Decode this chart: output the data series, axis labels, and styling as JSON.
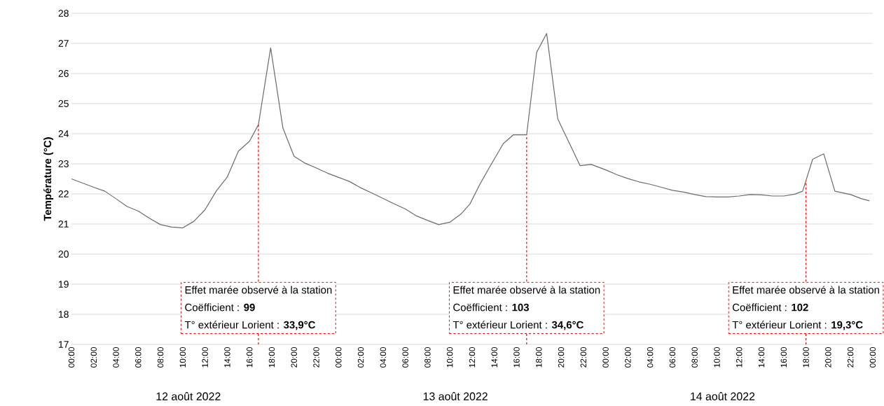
{
  "chart_data": {
    "type": "line",
    "ylabel": "Température (°C)",
    "x": [
      "2022-08-12T00:00",
      "2022-08-12T01:00",
      "2022-08-12T02:00",
      "2022-08-12T03:00",
      "2022-08-12T04:00",
      "2022-08-12T05:00",
      "2022-08-12T06:00",
      "2022-08-12T07:00",
      "2022-08-12T08:00",
      "2022-08-12T09:00",
      "2022-08-12T10:00",
      "2022-08-12T11:00",
      "2022-08-12T12:00",
      "2022-08-12T13:00",
      "2022-08-12T14:00",
      "2022-08-12T15:00",
      "2022-08-12T16:00",
      "2022-08-12T16:48",
      "2022-08-12T17:54",
      "2022-08-12T19:00",
      "2022-08-12T20:00",
      "2022-08-12T21:00",
      "2022-08-12T22:00",
      "2022-08-12T23:00",
      "2022-08-13T00:00",
      "2022-08-13T01:00",
      "2022-08-13T02:00",
      "2022-08-13T03:00",
      "2022-08-13T04:00",
      "2022-08-13T05:00",
      "2022-08-13T06:00",
      "2022-08-13T07:00",
      "2022-08-13T08:00",
      "2022-08-13T09:00",
      "2022-08-13T10:00",
      "2022-08-13T11:00",
      "2022-08-13T11:48",
      "2022-08-13T12:42",
      "2022-08-13T13:42",
      "2022-08-13T14:48",
      "2022-08-13T15:42",
      "2022-08-13T16:54",
      "2022-08-13T17:48",
      "2022-08-13T18:42",
      "2022-08-13T19:42",
      "2022-08-13T21:42",
      "2022-08-13T22:42",
      "2022-08-14T00:00",
      "2022-08-14T01:00",
      "2022-08-14T02:00",
      "2022-08-14T03:00",
      "2022-08-14T04:00",
      "2022-08-14T05:00",
      "2022-08-14T06:00",
      "2022-08-14T07:00",
      "2022-08-14T08:00",
      "2022-08-14T09:00",
      "2022-08-14T10:00",
      "2022-08-14T11:00",
      "2022-08-14T12:00",
      "2022-08-14T13:00",
      "2022-08-14T14:00",
      "2022-08-14T15:00",
      "2022-08-14T16:00",
      "2022-08-14T17:00",
      "2022-08-14T17:42",
      "2022-08-14T18:00",
      "2022-08-14T18:36",
      "2022-08-14T19:36",
      "2022-08-14T20:36",
      "2022-08-14T22:00",
      "2022-08-14T23:00",
      "2022-08-14T23:42"
    ],
    "series": [
      {
        "color": "#6b6b6b",
        "values": [
          22.5,
          22.36,
          22.22,
          22.09,
          21.84,
          21.58,
          21.43,
          21.19,
          20.98,
          20.9,
          20.87,
          21.09,
          21.47,
          22.09,
          22.56,
          23.42,
          23.75,
          24.3,
          26.85,
          24.19,
          23.25,
          23.02,
          22.86,
          22.69,
          22.55,
          22.41,
          22.2,
          22.03,
          21.85,
          21.67,
          21.5,
          21.27,
          21.12,
          20.98,
          21.06,
          21.33,
          21.66,
          22.32,
          22.97,
          23.67,
          23.96,
          23.96,
          26.7,
          27.33,
          24.49,
          22.94,
          22.98,
          22.8,
          22.64,
          22.51,
          22.4,
          22.32,
          22.22,
          22.12,
          22.06,
          21.98,
          21.91,
          21.9,
          21.9,
          21.93,
          21.98,
          21.97,
          21.93,
          21.93,
          21.99,
          22.09,
          22.44,
          23.15,
          23.33,
          22.09,
          21.98,
          21.84,
          21.77
        ]
      }
    ],
    "xlim": [
      "2022-08-12T00:00",
      "2022-08-15T00:00"
    ],
    "xticks": [
      {
        "value": "2022-08-12T00:00",
        "label": "00:00"
      },
      {
        "value": "2022-08-12T02:00",
        "label": "02:00"
      },
      {
        "value": "2022-08-12T04:00",
        "label": "04:00"
      },
      {
        "value": "2022-08-12T06:00",
        "label": "06:00"
      },
      {
        "value": "2022-08-12T08:00",
        "label": "08:00"
      },
      {
        "value": "2022-08-12T10:00",
        "label": "10:00"
      },
      {
        "value": "2022-08-12T12:00",
        "label": "12:00"
      },
      {
        "value": "2022-08-12T14:00",
        "label": "14:00"
      },
      {
        "value": "2022-08-12T16:00",
        "label": "16:00"
      },
      {
        "value": "2022-08-12T18:00",
        "label": "18:00"
      },
      {
        "value": "2022-08-12T20:00",
        "label": "20:00"
      },
      {
        "value": "2022-08-12T22:00",
        "label": "22:00"
      },
      {
        "value": "2022-08-13T00:00",
        "label": "00:00"
      },
      {
        "value": "2022-08-13T02:00",
        "label": "02:00"
      },
      {
        "value": "2022-08-13T04:00",
        "label": "04:00"
      },
      {
        "value": "2022-08-13T06:00",
        "label": "06:00"
      },
      {
        "value": "2022-08-13T08:00",
        "label": "08:00"
      },
      {
        "value": "2022-08-13T10:00",
        "label": "10:00"
      },
      {
        "value": "2022-08-13T12:00",
        "label": "12:00"
      },
      {
        "value": "2022-08-13T14:00",
        "label": "14:00"
      },
      {
        "value": "2022-08-13T16:00",
        "label": "16:00"
      },
      {
        "value": "2022-08-13T18:00",
        "label": "18:00"
      },
      {
        "value": "2022-08-13T20:00",
        "label": "20:00"
      },
      {
        "value": "2022-08-13T22:00",
        "label": "22:00"
      },
      {
        "value": "2022-08-14T00:00",
        "label": "00:00"
      },
      {
        "value": "2022-08-14T02:00",
        "label": "02:00"
      },
      {
        "value": "2022-08-14T04:00",
        "label": "04:00"
      },
      {
        "value": "2022-08-14T06:00",
        "label": "06:00"
      },
      {
        "value": "2022-08-14T08:00",
        "label": "08:00"
      },
      {
        "value": "2022-08-14T10:00",
        "label": "10:00"
      },
      {
        "value": "2022-08-14T12:00",
        "label": "12:00"
      },
      {
        "value": "2022-08-14T14:00",
        "label": "14:00"
      },
      {
        "value": "2022-08-14T16:00",
        "label": "16:00"
      },
      {
        "value": "2022-08-14T18:00",
        "label": "18:00"
      },
      {
        "value": "2022-08-14T20:00",
        "label": "20:00"
      },
      {
        "value": "2022-08-14T22:00",
        "label": "22:00"
      },
      {
        "value": "2022-08-15T00:00",
        "label": "00:00"
      }
    ],
    "ylim": [
      17,
      28
    ],
    "yticks": [
      17,
      18,
      19,
      20,
      21,
      22,
      23,
      24,
      25,
      26,
      27,
      28
    ],
    "grid": "y",
    "marker": "none",
    "line_style": "solid",
    "ref_lines": [
      {
        "axis": "x",
        "value": "2022-08-12T16:48",
        "label": "Effet marée observé à la station",
        "color": "#ff0000",
        "line_style": "dashed"
      },
      {
        "axis": "x",
        "value": "2022-08-13T16:54",
        "label": "Effet marée observé à la station",
        "color": "#ff0000",
        "line_style": "dashed"
      },
      {
        "axis": "x",
        "value": "2022-08-14T18:00",
        "label": "Effet marée observé à la station",
        "color": "#ff0000",
        "line_style": "dashed"
      }
    ],
    "annotations": [
      "Coëfficient : **99**",
      "T° extérieur Lorient : **33,9°C**",
      "Coëfficient : **103**",
      "T° extérieur Lorient : **34,6°C**",
      "Coëfficient : **102**",
      "T° extérieur Lorient : **19,3°C**",
      "12 août 2022",
      "13 août 2022",
      "14 août 2022"
    ]
  }
}
